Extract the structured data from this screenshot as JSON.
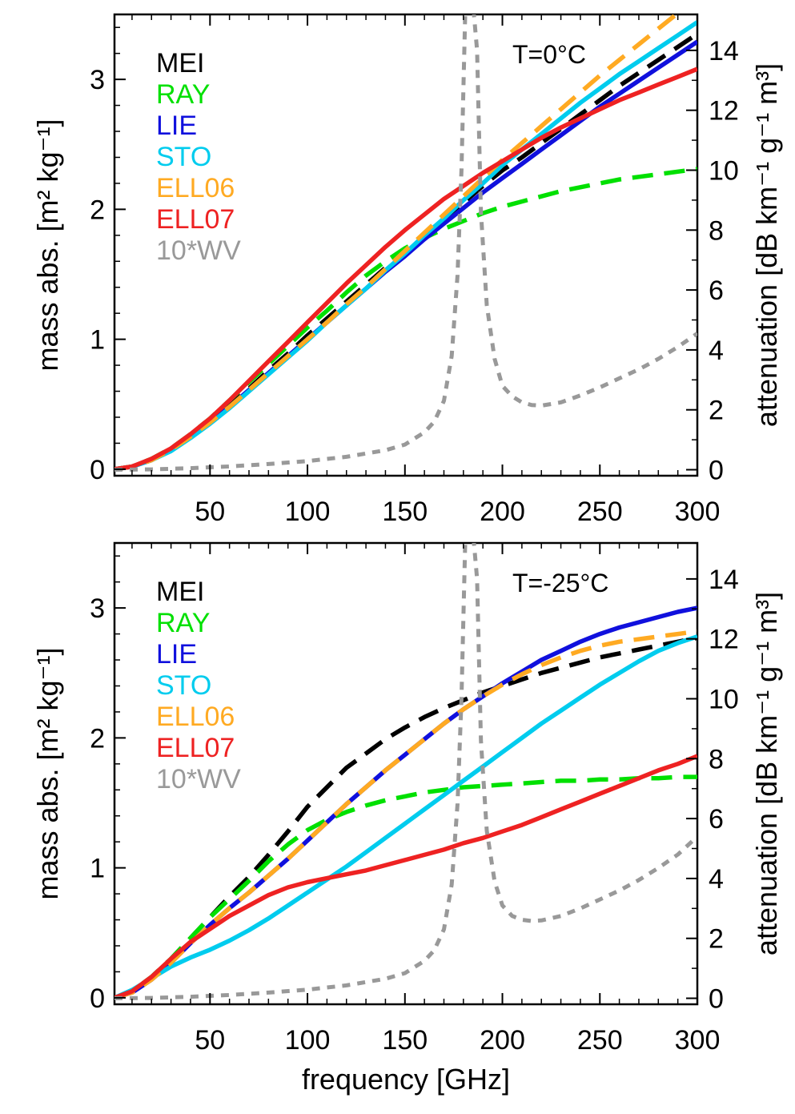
{
  "chart_data": [
    {
      "type": "line",
      "annotation": "T=0°C",
      "xlabel": "",
      "ylabel": "mass abs. [m² kg⁻¹]",
      "y2label": "attenuation [dB km⁻¹ g⁻¹ m³]",
      "xlim": [
        1,
        300
      ],
      "ylim": [
        -0.05,
        3.5
      ],
      "y2lim": [
        -0.2,
        15.2
      ],
      "xticks": [
        "50",
        "100",
        "150",
        "200",
        "250",
        "300"
      ],
      "yticks": [
        "0",
        "1",
        "2",
        "3"
      ],
      "y2ticks": [
        "0",
        "2",
        "4",
        "6",
        "8",
        "10",
        "12",
        "14"
      ],
      "legend_placement": "top-left",
      "series": [
        {
          "name": "MEI",
          "color": "#000000",
          "dash": "dashed",
          "axis": "left",
          "x": [
            1,
            10,
            20,
            30,
            40,
            50,
            60,
            70,
            80,
            90,
            100,
            110,
            120,
            130,
            140,
            150,
            160,
            170,
            180,
            190,
            200,
            210,
            220,
            230,
            240,
            250,
            260,
            270,
            280,
            290,
            300
          ],
          "y": [
            0,
            0.02,
            0.07,
            0.15,
            0.25,
            0.36,
            0.49,
            0.62,
            0.76,
            0.89,
            1.03,
            1.16,
            1.29,
            1.42,
            1.55,
            1.67,
            1.8,
            1.93,
            2.05,
            2.18,
            2.3,
            2.4,
            2.51,
            2.62,
            2.73,
            2.84,
            2.95,
            3.05,
            3.15,
            3.25,
            3.35
          ]
        },
        {
          "name": "RAY",
          "color": "#00e000",
          "dash": "dashed",
          "axis": "left",
          "x": [
            1,
            10,
            20,
            30,
            40,
            50,
            60,
            70,
            80,
            90,
            100,
            110,
            120,
            130,
            140,
            150,
            160,
            170,
            180,
            190,
            200,
            210,
            220,
            230,
            240,
            250,
            260,
            270,
            280,
            290,
            300
          ],
          "y": [
            0,
            0.02,
            0.08,
            0.16,
            0.27,
            0.39,
            0.53,
            0.67,
            0.81,
            0.95,
            1.09,
            1.22,
            1.36,
            1.49,
            1.6,
            1.7,
            1.78,
            1.85,
            1.91,
            1.97,
            2.02,
            2.06,
            2.1,
            2.14,
            2.17,
            2.2,
            2.23,
            2.25,
            2.27,
            2.29,
            2.31
          ]
        },
        {
          "name": "LIE",
          "color": "#1010dd",
          "dash": "solid",
          "axis": "left",
          "x": [
            1,
            10,
            20,
            30,
            40,
            50,
            60,
            70,
            80,
            90,
            100,
            110,
            120,
            130,
            140,
            150,
            160,
            170,
            180,
            190,
            200,
            210,
            220,
            230,
            240,
            250,
            260,
            270,
            280,
            290,
            300
          ],
          "y": [
            0,
            0.02,
            0.07,
            0.15,
            0.25,
            0.36,
            0.48,
            0.61,
            0.74,
            0.87,
            1.0,
            1.13,
            1.26,
            1.39,
            1.52,
            1.64,
            1.77,
            1.89,
            2.01,
            2.13,
            2.24,
            2.35,
            2.46,
            2.57,
            2.68,
            2.79,
            2.89,
            2.99,
            3.09,
            3.19,
            3.29
          ]
        },
        {
          "name": "STO",
          "color": "#00ccee",
          "dash": "solid",
          "axis": "left",
          "x": [
            1,
            10,
            20,
            30,
            40,
            50,
            60,
            70,
            80,
            90,
            100,
            110,
            120,
            130,
            140,
            150,
            160,
            170,
            180,
            190,
            200,
            210,
            220,
            230,
            240,
            250,
            260,
            270,
            280,
            290,
            300
          ],
          "y": [
            0,
            0.02,
            0.07,
            0.14,
            0.24,
            0.35,
            0.47,
            0.6,
            0.73,
            0.86,
            0.99,
            1.13,
            1.26,
            1.39,
            1.53,
            1.66,
            1.8,
            1.93,
            2.07,
            2.2,
            2.34,
            2.46,
            2.58,
            2.7,
            2.82,
            2.93,
            3.04,
            3.14,
            3.24,
            3.34,
            3.44
          ]
        },
        {
          "name": "ELL06",
          "color": "#ffaa22",
          "dash": "dashed",
          "axis": "left",
          "x": [
            1,
            10,
            20,
            30,
            40,
            50,
            60,
            70,
            80,
            90,
            100,
            110,
            120,
            130,
            140,
            150,
            160,
            170,
            180,
            190,
            200,
            210,
            220,
            230,
            240,
            250,
            260,
            270,
            280,
            290,
            300
          ],
          "y": [
            0,
            0.02,
            0.07,
            0.15,
            0.25,
            0.36,
            0.48,
            0.61,
            0.74,
            0.87,
            1.0,
            1.13,
            1.27,
            1.4,
            1.54,
            1.68,
            1.82,
            1.96,
            2.1,
            2.24,
            2.38,
            2.51,
            2.64,
            2.77,
            2.9,
            3.03,
            3.15,
            3.27,
            3.39,
            3.51,
            3.62
          ]
        },
        {
          "name": "ELL07",
          "color": "#ee2222",
          "dash": "solid",
          "axis": "left",
          "x": [
            1,
            10,
            20,
            30,
            40,
            50,
            60,
            70,
            80,
            90,
            100,
            110,
            120,
            130,
            140,
            150,
            160,
            170,
            180,
            190,
            200,
            210,
            220,
            230,
            240,
            250,
            260,
            270,
            280,
            290,
            300
          ],
          "y": [
            0,
            0.02,
            0.08,
            0.16,
            0.27,
            0.39,
            0.53,
            0.68,
            0.83,
            0.98,
            1.13,
            1.28,
            1.43,
            1.57,
            1.71,
            1.84,
            1.96,
            2.08,
            2.18,
            2.28,
            2.37,
            2.46,
            2.55,
            2.63,
            2.7,
            2.77,
            2.84,
            2.9,
            2.96,
            3.02,
            3.08
          ]
        },
        {
          "name": "10*WV",
          "color": "#999999",
          "dash": "dashed",
          "axis": "right",
          "x": [
            1,
            20,
            40,
            60,
            80,
            100,
            120,
            140,
            150,
            160,
            165,
            170,
            174,
            177,
            179,
            181,
            183,
            185,
            187,
            189,
            192,
            196,
            200,
            205,
            210,
            215,
            220,
            230,
            240,
            250,
            260,
            270,
            280,
            290,
            300
          ],
          "y": [
            0,
            0.01,
            0.05,
            0.11,
            0.19,
            0.29,
            0.43,
            0.65,
            0.84,
            1.25,
            1.6,
            2.3,
            3.8,
            6.5,
            10.0,
            15.5,
            15.5,
            15.5,
            14.0,
            8.6,
            5.5,
            3.7,
            2.8,
            2.45,
            2.25,
            2.16,
            2.14,
            2.25,
            2.48,
            2.75,
            3.05,
            3.35,
            3.7,
            4.1,
            4.55
          ]
        }
      ]
    },
    {
      "type": "line",
      "annotation": "T=-25°C",
      "xlabel": "frequency [GHz]",
      "ylabel": "mass abs. [m² kg⁻¹]",
      "y2label": "attenuation [dB km⁻¹ g⁻¹ m³]",
      "xlim": [
        1,
        300
      ],
      "ylim": [
        -0.05,
        3.5
      ],
      "y2lim": [
        -0.2,
        15.2
      ],
      "xticks": [
        "50",
        "100",
        "150",
        "200",
        "250",
        "300"
      ],
      "yticks": [
        "0",
        "1",
        "2",
        "3"
      ],
      "y2ticks": [
        "0",
        "2",
        "4",
        "6",
        "8",
        "10",
        "12",
        "14"
      ],
      "legend_placement": "top-left",
      "series": [
        {
          "name": "MEI",
          "color": "#000000",
          "dash": "dashed",
          "axis": "left",
          "x": [
            1,
            10,
            20,
            30,
            40,
            50,
            60,
            70,
            80,
            90,
            100,
            110,
            120,
            130,
            140,
            150,
            160,
            170,
            180,
            190,
            200,
            210,
            220,
            230,
            240,
            250,
            260,
            270,
            280,
            290,
            300
          ],
          "y": [
            0,
            0.05,
            0.16,
            0.3,
            0.46,
            0.62,
            0.78,
            0.93,
            1.1,
            1.28,
            1.47,
            1.62,
            1.77,
            1.88,
            1.99,
            2.08,
            2.16,
            2.23,
            2.29,
            2.35,
            2.4,
            2.45,
            2.5,
            2.54,
            2.58,
            2.62,
            2.65,
            2.68,
            2.71,
            2.74,
            2.77
          ]
        },
        {
          "name": "RAY",
          "color": "#00e000",
          "dash": "dashed",
          "axis": "left",
          "x": [
            1,
            10,
            20,
            30,
            40,
            50,
            60,
            70,
            80,
            90,
            100,
            110,
            120,
            130,
            140,
            150,
            160,
            170,
            180,
            190,
            200,
            210,
            220,
            230,
            240,
            250,
            260,
            270,
            280,
            290,
            300
          ],
          "y": [
            0,
            0.05,
            0.16,
            0.3,
            0.46,
            0.62,
            0.76,
            0.9,
            1.05,
            1.18,
            1.29,
            1.37,
            1.43,
            1.48,
            1.52,
            1.55,
            1.58,
            1.6,
            1.62,
            1.63,
            1.64,
            1.65,
            1.66,
            1.67,
            1.67,
            1.68,
            1.68,
            1.69,
            1.69,
            1.7,
            1.7
          ]
        },
        {
          "name": "LIE",
          "color": "#1010dd",
          "dash": "solid",
          "axis": "left",
          "x": [
            1,
            10,
            20,
            30,
            40,
            50,
            60,
            70,
            80,
            90,
            100,
            110,
            120,
            130,
            140,
            150,
            160,
            170,
            180,
            190,
            200,
            210,
            220,
            230,
            240,
            250,
            260,
            270,
            280,
            290,
            300
          ],
          "y": [
            0,
            0.04,
            0.14,
            0.27,
            0.42,
            0.56,
            0.69,
            0.81,
            0.94,
            1.07,
            1.21,
            1.35,
            1.49,
            1.62,
            1.75,
            1.87,
            1.99,
            2.11,
            2.22,
            2.32,
            2.42,
            2.51,
            2.6,
            2.67,
            2.74,
            2.8,
            2.85,
            2.89,
            2.93,
            2.97,
            3.0
          ]
        },
        {
          "name": "STO",
          "color": "#00ccee",
          "dash": "solid",
          "axis": "left",
          "x": [
            1,
            10,
            20,
            30,
            40,
            50,
            60,
            70,
            80,
            90,
            100,
            110,
            120,
            130,
            140,
            150,
            160,
            170,
            180,
            190,
            200,
            210,
            220,
            230,
            240,
            250,
            260,
            270,
            280,
            290,
            300
          ],
          "y": [
            0,
            0.06,
            0.15,
            0.24,
            0.31,
            0.37,
            0.44,
            0.52,
            0.61,
            0.71,
            0.81,
            0.91,
            1.01,
            1.12,
            1.23,
            1.34,
            1.45,
            1.56,
            1.67,
            1.78,
            1.89,
            2.0,
            2.11,
            2.21,
            2.31,
            2.41,
            2.5,
            2.59,
            2.67,
            2.73,
            2.78
          ]
        },
        {
          "name": "ELL06",
          "color": "#ffaa22",
          "dash": "dashed",
          "axis": "left",
          "x": [
            1,
            10,
            20,
            30,
            40,
            50,
            60,
            70,
            80,
            90,
            100,
            110,
            120,
            130,
            140,
            150,
            160,
            170,
            180,
            190,
            200,
            210,
            220,
            230,
            240,
            250,
            260,
            270,
            280,
            290,
            300
          ],
          "y": [
            0,
            0.04,
            0.14,
            0.27,
            0.42,
            0.56,
            0.69,
            0.81,
            0.94,
            1.07,
            1.21,
            1.35,
            1.49,
            1.62,
            1.75,
            1.87,
            1.99,
            2.11,
            2.22,
            2.32,
            2.41,
            2.49,
            2.56,
            2.62,
            2.67,
            2.71,
            2.74,
            2.76,
            2.78,
            2.8,
            2.82
          ]
        },
        {
          "name": "ELL07",
          "color": "#ee2222",
          "dash": "solid",
          "axis": "left",
          "x": [
            1,
            10,
            20,
            30,
            40,
            50,
            60,
            70,
            80,
            90,
            100,
            110,
            120,
            130,
            140,
            150,
            160,
            170,
            180,
            190,
            200,
            210,
            220,
            230,
            240,
            250,
            260,
            270,
            280,
            290,
            300
          ],
          "y": [
            0,
            0.05,
            0.16,
            0.3,
            0.43,
            0.53,
            0.63,
            0.71,
            0.79,
            0.85,
            0.89,
            0.92,
            0.95,
            0.98,
            1.02,
            1.06,
            1.1,
            1.14,
            1.19,
            1.23,
            1.28,
            1.33,
            1.39,
            1.45,
            1.51,
            1.57,
            1.63,
            1.69,
            1.75,
            1.8,
            1.86
          ]
        },
        {
          "name": "10*WV",
          "color": "#999999",
          "dash": "dashed",
          "axis": "right",
          "x": [
            1,
            20,
            40,
            60,
            80,
            100,
            120,
            140,
            150,
            160,
            165,
            170,
            174,
            177,
            179,
            181,
            183,
            185,
            187,
            189,
            192,
            196,
            200,
            205,
            210,
            215,
            220,
            230,
            240,
            250,
            260,
            270,
            280,
            290,
            300
          ],
          "y": [
            0,
            0.01,
            0.05,
            0.11,
            0.19,
            0.29,
            0.43,
            0.65,
            0.84,
            1.25,
            1.6,
            2.3,
            3.8,
            6.5,
            10.0,
            15.5,
            15.5,
            15.5,
            14.0,
            8.6,
            5.6,
            3.9,
            3.1,
            2.75,
            2.62,
            2.58,
            2.6,
            2.75,
            3.0,
            3.3,
            3.6,
            3.95,
            4.35,
            4.8,
            5.4
          ]
        }
      ]
    }
  ]
}
